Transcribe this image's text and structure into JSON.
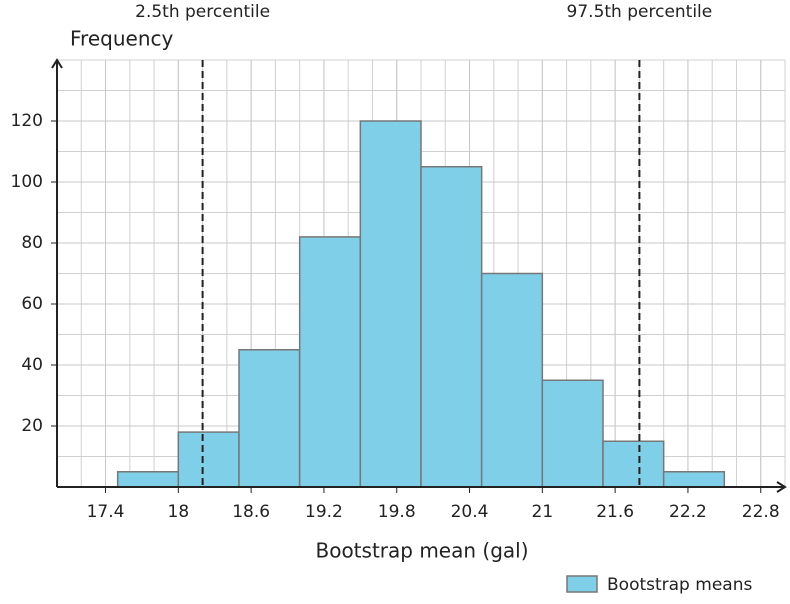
{
  "chart_data": {
    "type": "histogram",
    "x_label": "Bootstrap mean (gal)",
    "y_label": "Frequency",
    "bins": [
      17.5,
      18,
      18.5,
      19,
      19.5,
      20,
      20.5,
      21,
      21.5,
      22,
      22.5
    ],
    "counts": [
      5,
      18,
      45,
      82,
      120,
      105,
      70,
      35,
      15,
      5
    ],
    "series_name": "Bootstrap means",
    "color": "#80cfe8",
    "edge_color": "#777777",
    "xlim": [
      17,
      23
    ],
    "xticks": [
      17.4,
      18,
      18.6,
      19.2,
      19.8,
      20.4,
      21,
      21.6,
      22.2,
      22.8
    ],
    "ylim": [
      0,
      140
    ],
    "yticks": [
      20,
      40,
      60,
      80,
      100,
      120
    ],
    "grid": true,
    "legend": "lower right",
    "vlines": [
      {
        "x": 18.2,
        "label": "2.5th percentile"
      },
      {
        "x": 21.8,
        "label": "97.5th percentile"
      }
    ]
  }
}
